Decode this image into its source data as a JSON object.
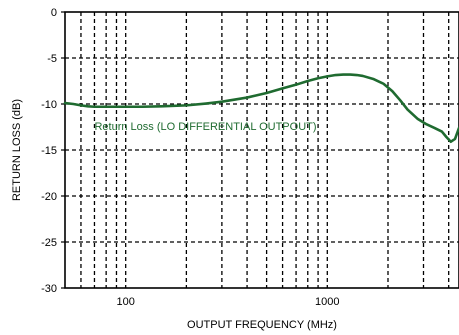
{
  "chart_data": {
    "type": "line",
    "title": "",
    "xlabel": "OUTPUT FREQUENCY (MHz)",
    "ylabel": "RETURN LOSS (dB)",
    "x_scale": "log",
    "xlim": [
      50,
      4500
    ],
    "ylim": [
      -30,
      0
    ],
    "x_ticks": [
      100,
      1000
    ],
    "x_tick_labels": [
      "100",
      "1000"
    ],
    "x_minor_grid": [
      60,
      70,
      80,
      90,
      200,
      300,
      400,
      500,
      600,
      700,
      800,
      900,
      2000,
      3000,
      4000
    ],
    "y_ticks": [
      0,
      -5,
      -10,
      -15,
      -20,
      -25,
      -30
    ],
    "y_tick_labels": [
      "0",
      "-5",
      "-10",
      "-15",
      "-20",
      "-25",
      "-30"
    ],
    "grid": true,
    "grid_style": "dashed",
    "line_color": "#1f6b30",
    "annotation": {
      "text": "Return Loss  (LO DIFFERENTIAL OUTPOUT)",
      "x": 70,
      "y": -12.8,
      "color": "#1f6b30"
    },
    "series": [
      {
        "x": [
          50,
          55,
          60,
          65,
          70,
          80,
          90,
          100,
          120,
          150,
          200,
          250,
          300,
          400,
          500,
          600,
          700,
          800,
          900,
          1000,
          1100,
          1200,
          1300,
          1400,
          1500,
          1700,
          1900,
          2100,
          2300,
          2500,
          2800,
          3100,
          3400,
          3700,
          3900,
          4100,
          4300,
          4500
        ],
        "y": [
          -9.9,
          -10.0,
          -10.15,
          -10.25,
          -10.3,
          -10.3,
          -10.3,
          -10.3,
          -10.3,
          -10.25,
          -10.15,
          -9.95,
          -9.75,
          -9.3,
          -8.8,
          -8.3,
          -7.9,
          -7.5,
          -7.2,
          -7.0,
          -6.85,
          -6.8,
          -6.8,
          -6.85,
          -6.95,
          -7.3,
          -7.8,
          -8.6,
          -9.6,
          -10.6,
          -11.6,
          -12.2,
          -12.6,
          -13.0,
          -13.6,
          -14.1,
          -13.8,
          -12.6
        ]
      }
    ]
  }
}
